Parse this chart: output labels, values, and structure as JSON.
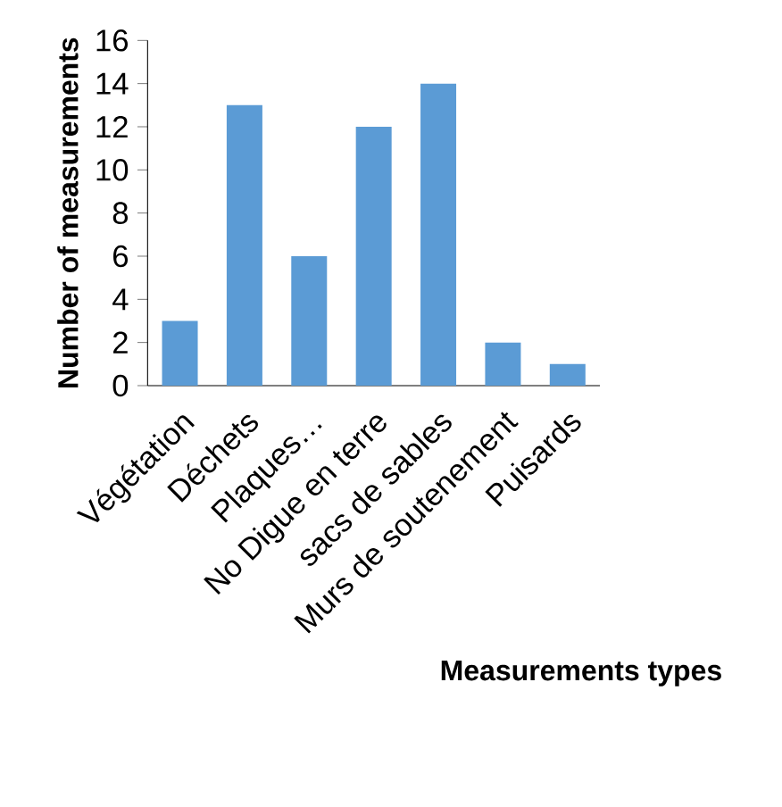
{
  "chart_data": {
    "type": "bar",
    "xlabel": "Measurements types",
    "ylabel": "Number of measurements",
    "categories": [
      "Végétation",
      "Déchets",
      "Plaques…",
      "No Digue en terre",
      "sacs de sables",
      "Murs de soutenement",
      "Puisards"
    ],
    "values": [
      3,
      13,
      6,
      12,
      14,
      2,
      1
    ],
    "color": "#5b9bd5",
    "ylim": [
      0,
      16
    ],
    "yticks": [
      0,
      2,
      4,
      6,
      8,
      10,
      12,
      14,
      16
    ]
  }
}
